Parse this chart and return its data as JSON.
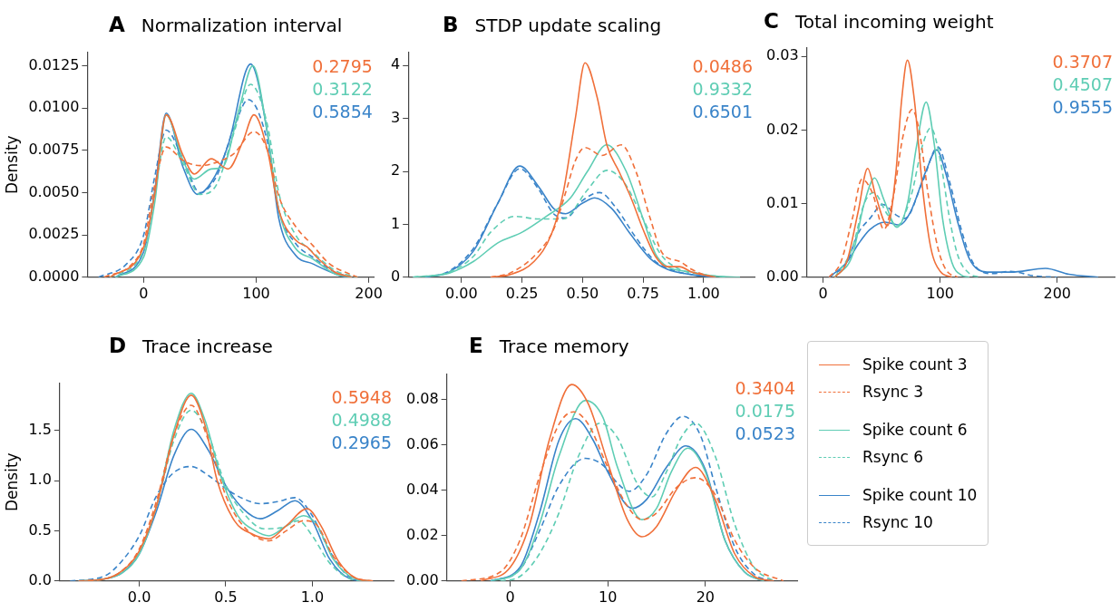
{
  "chart_data": [
    {
      "type": "line",
      "title": "A Normalization interval",
      "ylabel": "Density",
      "xlim": [
        -50,
        205
      ],
      "ylim": [
        0,
        0.0133
      ],
      "xticks": [
        0,
        100,
        200
      ],
      "yticks": [
        {
          "value": 0,
          "label": "0.0000"
        },
        {
          "value": 0.0025,
          "label": "0.0025"
        },
        {
          "value": 0.005,
          "label": "0.0050"
        },
        {
          "value": 0.0075,
          "label": "0.0075"
        },
        {
          "value": 0.01,
          "label": "0.0100"
        },
        {
          "value": 0.0125,
          "label": "0.0125"
        }
      ],
      "grid": false,
      "annotations": [
        "0.2795",
        "0.3122",
        "0.5854"
      ],
      "series": [
        {
          "color": "#f0703a",
          "line_style": "solid",
          "x": [
            -30,
            0,
            10,
            20,
            35,
            45,
            60,
            75,
            88,
            98,
            110,
            120,
            135,
            145,
            155,
            170,
            185
          ],
          "values": [
            0,
            0.0018,
            0.005,
            0.0096,
            0.0072,
            0.0061,
            0.007,
            0.0064,
            0.008,
            0.0096,
            0.0075,
            0.004,
            0.0022,
            0.0018,
            0.0011,
            0.0003,
            0
          ]
        },
        {
          "color": "#f0703a",
          "line_style": "dashed",
          "x": [
            -35,
            -10,
            0,
            10,
            20,
            35,
            50,
            65,
            80,
            98,
            110,
            120,
            135,
            150,
            165,
            190
          ],
          "values": [
            0,
            0.0008,
            0.002,
            0.0055,
            0.0077,
            0.0069,
            0.0066,
            0.0068,
            0.0073,
            0.0086,
            0.0075,
            0.0048,
            0.003,
            0.0019,
            0.0008,
            0
          ]
        },
        {
          "color": "#5fcdb4",
          "line_style": "solid",
          "x": [
            -25,
            0,
            10,
            20,
            35,
            45,
            60,
            70,
            85,
            97,
            110,
            120,
            135,
            150,
            170,
            185
          ],
          "values": [
            0,
            0.0012,
            0.0045,
            0.0096,
            0.0069,
            0.0058,
            0.0064,
            0.0065,
            0.01,
            0.0125,
            0.0085,
            0.004,
            0.0017,
            0.0011,
            0.0002,
            0
          ]
        },
        {
          "color": "#5fcdb4",
          "line_style": "dashed",
          "x": [
            -30,
            0,
            10,
            20,
            35,
            50,
            65,
            80,
            95,
            110,
            120,
            135,
            150,
            170,
            190
          ],
          "values": [
            0,
            0.0016,
            0.005,
            0.0083,
            0.0067,
            0.0049,
            0.0055,
            0.0085,
            0.0114,
            0.009,
            0.005,
            0.0025,
            0.0015,
            0.0004,
            0
          ]
        },
        {
          "color": "#3a84c9",
          "line_style": "solid",
          "x": [
            -25,
            0,
            10,
            20,
            35,
            48,
            60,
            75,
            95,
            110,
            120,
            135,
            150,
            170,
            180
          ],
          "values": [
            0,
            0.0015,
            0.0052,
            0.0097,
            0.0065,
            0.0049,
            0.0056,
            0.0078,
            0.0126,
            0.0085,
            0.0035,
            0.0013,
            0.0008,
            0.0002,
            0
          ]
        },
        {
          "color": "#3a84c9",
          "line_style": "dashed",
          "x": [
            -40,
            -15,
            0,
            10,
            20,
            35,
            50,
            65,
            80,
            93,
            110,
            120,
            135,
            150,
            170,
            185
          ],
          "values": [
            0,
            0.0008,
            0.0025,
            0.006,
            0.0087,
            0.007,
            0.005,
            0.006,
            0.0088,
            0.0105,
            0.008,
            0.004,
            0.002,
            0.0012,
            0.0003,
            0
          ]
        }
      ]
    },
    {
      "type": "line",
      "title": "B STDP update scaling",
      "xlim": [
        -0.22,
        1.21
      ],
      "ylim": [
        0,
        4.25
      ],
      "xticks": [
        {
          "value": 0,
          "label": "0.00"
        },
        {
          "value": 0.25,
          "label": "0.25"
        },
        {
          "value": 0.5,
          "label": "0.50"
        },
        {
          "value": 0.75,
          "label": "0.75"
        },
        {
          "value": 1,
          "label": "1.00"
        }
      ],
      "yticks": [
        0,
        1,
        2,
        3,
        4
      ],
      "grid": false,
      "annotations": [
        "0.0486",
        "0.9332",
        "0.6501"
      ],
      "series": [
        {
          "color": "#f0703a",
          "line_style": "solid",
          "x": [
            0.12,
            0.2,
            0.3,
            0.37,
            0.42,
            0.47,
            0.51,
            0.56,
            0.6,
            0.65,
            0.7,
            0.75,
            0.8,
            0.85,
            0.9,
            0.95,
            1.05
          ],
          "values": [
            0,
            0.05,
            0.3,
            0.8,
            1.6,
            3.0,
            4.05,
            3.4,
            2.5,
            2.0,
            1.5,
            0.9,
            0.4,
            0.2,
            0.2,
            0.1,
            0
          ]
        },
        {
          "color": "#f0703a",
          "line_style": "dashed",
          "x": [
            0.12,
            0.2,
            0.3,
            0.38,
            0.43,
            0.47,
            0.51,
            0.58,
            0.66,
            0.72,
            0.78,
            0.83,
            0.9,
            0.95,
            1.0,
            1.05
          ],
          "values": [
            0,
            0.08,
            0.4,
            0.9,
            1.6,
            2.2,
            2.45,
            2.3,
            2.5,
            2.0,
            1.1,
            0.45,
            0.3,
            0.15,
            0.05,
            0
          ]
        },
        {
          "color": "#5fcdb4",
          "line_style": "solid",
          "x": [
            -0.2,
            -0.05,
            0.05,
            0.15,
            0.25,
            0.35,
            0.45,
            0.52,
            0.6,
            0.68,
            0.75,
            0.8,
            0.85,
            0.95,
            1.05,
            1.15
          ],
          "values": [
            0,
            0.08,
            0.3,
            0.65,
            0.85,
            1.15,
            1.5,
            2.0,
            2.5,
            2.0,
            1.1,
            0.45,
            0.2,
            0.1,
            0.02,
            0
          ]
        },
        {
          "color": "#5fcdb4",
          "line_style": "dashed",
          "x": [
            -0.2,
            -0.05,
            0.05,
            0.12,
            0.22,
            0.32,
            0.42,
            0.52,
            0.6,
            0.67,
            0.75,
            0.82,
            0.9,
            1.0,
            1.1
          ],
          "values": [
            0,
            0.1,
            0.4,
            0.85,
            1.15,
            1.1,
            1.1,
            1.65,
            2.02,
            1.8,
            1.1,
            0.45,
            0.15,
            0.05,
            0
          ]
        },
        {
          "color": "#3a84c9",
          "line_style": "solid",
          "x": [
            -0.15,
            -0.05,
            0.05,
            0.15,
            0.24,
            0.32,
            0.38,
            0.43,
            0.5,
            0.55,
            0.62,
            0.7,
            0.78,
            0.85,
            0.95,
            1.05
          ],
          "values": [
            0,
            0.1,
            0.5,
            1.4,
            2.1,
            1.7,
            1.3,
            1.2,
            1.4,
            1.5,
            1.3,
            0.8,
            0.35,
            0.15,
            0.05,
            0
          ]
        },
        {
          "color": "#3a84c9",
          "line_style": "dashed",
          "x": [
            -0.15,
            -0.05,
            0.05,
            0.15,
            0.24,
            0.32,
            0.38,
            0.43,
            0.5,
            0.57,
            0.64,
            0.72,
            0.8,
            0.88,
            0.95,
            1.05
          ],
          "values": [
            0,
            0.12,
            0.55,
            1.4,
            2.05,
            1.65,
            1.2,
            1.12,
            1.45,
            1.6,
            1.3,
            0.75,
            0.3,
            0.12,
            0.05,
            0
          ]
        }
      ]
    },
    {
      "type": "line",
      "title": "C Total incoming weight",
      "xlim": [
        -14,
        249
      ],
      "ylim": [
        0,
        0.0312
      ],
      "xticks": [
        0,
        100,
        200
      ],
      "yticks": [
        {
          "value": 0,
          "label": "0.00"
        },
        {
          "value": 0.01,
          "label": "0.01"
        },
        {
          "value": 0.02,
          "label": "0.02"
        },
        {
          "value": 0.03,
          "label": "0.03"
        }
      ],
      "grid": false,
      "annotations": [
        "0.3707",
        "0.4507",
        "0.9555"
      ],
      "series": [
        {
          "color": "#f0703a",
          "line_style": "solid",
          "x": [
            10,
            20,
            30,
            38,
            45,
            55,
            62,
            67,
            72,
            78,
            85,
            92,
            100,
            110
          ],
          "values": [
            0,
            0.002,
            0.009,
            0.0148,
            0.011,
            0.007,
            0.014,
            0.024,
            0.0295,
            0.024,
            0.012,
            0.004,
            0.0008,
            0
          ]
        },
        {
          "color": "#f0703a",
          "line_style": "dashed",
          "x": [
            5,
            15,
            25,
            33,
            42,
            52,
            60,
            68,
            76,
            82,
            90,
            98,
            105,
            115
          ],
          "values": [
            0,
            0.002,
            0.008,
            0.0133,
            0.0115,
            0.0065,
            0.011,
            0.019,
            0.0228,
            0.02,
            0.011,
            0.004,
            0.001,
            0
          ]
        },
        {
          "color": "#5fcdb4",
          "line_style": "solid",
          "x": [
            10,
            25,
            35,
            44,
            52,
            63,
            72,
            80,
            88,
            95,
            102,
            110,
            118,
            125
          ],
          "values": [
            0,
            0.003,
            0.01,
            0.0135,
            0.0105,
            0.0068,
            0.01,
            0.018,
            0.0238,
            0.018,
            0.008,
            0.002,
            0.0003,
            0
          ]
        },
        {
          "color": "#5fcdb4",
          "line_style": "dashed",
          "x": [
            10,
            25,
            35,
            43,
            55,
            63,
            75,
            85,
            92,
            100,
            108,
            115,
            125,
            135
          ],
          "values": [
            0,
            0.004,
            0.01,
            0.0115,
            0.0085,
            0.007,
            0.011,
            0.018,
            0.0203,
            0.016,
            0.008,
            0.003,
            0.0005,
            0
          ]
        },
        {
          "color": "#3a84c9",
          "line_style": "solid",
          "x": [
            5,
            20,
            30,
            40,
            53,
            65,
            75,
            88,
            97,
            105,
            115,
            125,
            140,
            160,
            190,
            210,
            235
          ],
          "values": [
            0,
            0.002,
            0.0045,
            0.0065,
            0.0075,
            0.0071,
            0.009,
            0.0145,
            0.0173,
            0.014,
            0.0075,
            0.0025,
            0.0007,
            0.0007,
            0.0012,
            0.0004,
            0
          ]
        },
        {
          "color": "#3a84c9",
          "line_style": "dashed",
          "x": [
            5,
            20,
            30,
            40,
            51,
            62,
            70,
            85,
            98,
            108,
            118,
            128,
            145,
            160,
            180,
            200
          ],
          "values": [
            0,
            0.002,
            0.006,
            0.008,
            0.0099,
            0.0085,
            0.008,
            0.013,
            0.0177,
            0.013,
            0.0065,
            0.002,
            0.0005,
            0.0008,
            0.0002,
            0
          ]
        }
      ]
    },
    {
      "type": "line",
      "title": "D Trace increase",
      "ylabel": "Density",
      "xlim": [
        -0.46,
        1.47
      ],
      "ylim": [
        0,
        1.97
      ],
      "xticks": [
        {
          "value": 0,
          "label": "0.0"
        },
        {
          "value": 0.5,
          "label": "0.5"
        },
        {
          "value": 1,
          "label": "1.0"
        }
      ],
      "yticks": [
        {
          "value": 0,
          "label": "0.0"
        },
        {
          "value": 0.5,
          "label": "0.5"
        },
        {
          "value": 1,
          "label": "1.0"
        },
        {
          "value": 1.5,
          "label": "1.5"
        }
      ],
      "grid": false,
      "annotations": [
        "0.5948",
        "0.4988",
        "0.2965"
      ],
      "series": [
        {
          "color": "#f0703a",
          "line_style": "solid",
          "x": [
            -0.35,
            -0.2,
            -0.1,
            0,
            0.1,
            0.2,
            0.3,
            0.38,
            0.45,
            0.55,
            0.65,
            0.75,
            0.85,
            0.97,
            1.05,
            1.15,
            1.25,
            1.35
          ],
          "values": [
            0,
            0.02,
            0.1,
            0.3,
            0.75,
            1.45,
            1.85,
            1.55,
            1.0,
            0.6,
            0.47,
            0.42,
            0.55,
            0.72,
            0.55,
            0.2,
            0.03,
            0
          ]
        },
        {
          "color": "#f0703a",
          "line_style": "dashed",
          "x": [
            -0.35,
            -0.2,
            -0.1,
            0,
            0.1,
            0.2,
            0.3,
            0.4,
            0.5,
            0.6,
            0.75,
            0.85,
            0.95,
            1.03,
            1.12,
            1.25,
            1.35
          ],
          "values": [
            0,
            0.02,
            0.1,
            0.32,
            0.8,
            1.45,
            1.75,
            1.4,
            0.85,
            0.55,
            0.4,
            0.5,
            0.6,
            0.55,
            0.25,
            0.03,
            0
          ]
        },
        {
          "color": "#5fcdb4",
          "line_style": "solid",
          "x": [
            -0.35,
            -0.2,
            -0.1,
            0,
            0.1,
            0.2,
            0.3,
            0.38,
            0.47,
            0.57,
            0.67,
            0.75,
            0.85,
            0.95,
            1.03,
            1.12,
            1.25,
            1.35
          ],
          "values": [
            0,
            0.02,
            0.08,
            0.27,
            0.75,
            1.5,
            1.87,
            1.6,
            1.05,
            0.65,
            0.5,
            0.45,
            0.55,
            0.65,
            0.55,
            0.22,
            0.02,
            0
          ]
        },
        {
          "color": "#5fcdb4",
          "line_style": "dashed",
          "x": [
            -0.35,
            -0.2,
            -0.1,
            0,
            0.1,
            0.2,
            0.3,
            0.4,
            0.5,
            0.6,
            0.72,
            0.82,
            0.92,
            1.0,
            1.1,
            1.22,
            1.3
          ],
          "values": [
            0,
            0.02,
            0.1,
            0.3,
            0.75,
            1.4,
            1.7,
            1.45,
            0.95,
            0.68,
            0.52,
            0.53,
            0.6,
            0.45,
            0.18,
            0.02,
            0
          ]
        },
        {
          "color": "#3a84c9",
          "line_style": "solid",
          "x": [
            -0.35,
            -0.2,
            -0.1,
            0,
            0.1,
            0.2,
            0.3,
            0.4,
            0.5,
            0.6,
            0.7,
            0.8,
            0.9,
            1.0,
            1.1,
            1.22,
            1.3
          ],
          "values": [
            0,
            0.02,
            0.08,
            0.27,
            0.7,
            1.25,
            1.51,
            1.3,
            0.95,
            0.72,
            0.62,
            0.7,
            0.8,
            0.6,
            0.22,
            0.02,
            0
          ]
        },
        {
          "color": "#3a84c9",
          "line_style": "dashed",
          "x": [
            -0.4,
            -0.2,
            -0.1,
            0,
            0.1,
            0.2,
            0.3,
            0.4,
            0.5,
            0.6,
            0.7,
            0.8,
            0.9,
            1.0,
            1.1,
            1.2,
            1.3
          ],
          "values": [
            0,
            0.05,
            0.2,
            0.45,
            0.85,
            1.08,
            1.14,
            1.05,
            0.92,
            0.82,
            0.77,
            0.79,
            0.83,
            0.65,
            0.3,
            0.06,
            0
          ]
        }
      ]
    },
    {
      "type": "line",
      "title": "E Trace memory",
      "xlim": [
        -6.5,
        29.4
      ],
      "ylim": [
        0,
        0.0911
      ],
      "xticks": [
        0,
        10,
        20
      ],
      "yticks": [
        {
          "value": 0,
          "label": "0.00"
        },
        {
          "value": 0.02,
          "label": "0.02"
        },
        {
          "value": 0.04,
          "label": "0.04"
        },
        {
          "value": 0.06,
          "label": "0.06"
        },
        {
          "value": 0.08,
          "label": "0.08"
        }
      ],
      "grid": false,
      "legend": "right",
      "annotations": [
        "0.3404",
        "0.0175",
        "0.0523"
      ],
      "series": [
        {
          "name": "Spike count 3",
          "color": "#f0703a",
          "line_style": "solid",
          "x": [
            -3,
            0,
            2,
            4,
            6.3,
            8,
            10,
            12,
            13.5,
            15,
            17,
            19,
            21,
            23,
            25,
            27
          ],
          "values": [
            0,
            0.006,
            0.025,
            0.062,
            0.0865,
            0.078,
            0.052,
            0.027,
            0.0195,
            0.024,
            0.04,
            0.05,
            0.036,
            0.012,
            0.002,
            0
          ]
        },
        {
          "name": "Rsync 3",
          "color": "#f0703a",
          "line_style": "dashed",
          "x": [
            -5,
            -1,
            1,
            3,
            5,
            6.5,
            8,
            10,
            12,
            13.5,
            15,
            17,
            19,
            21,
            23,
            25,
            28
          ],
          "values": [
            0,
            0.004,
            0.018,
            0.046,
            0.069,
            0.0745,
            0.069,
            0.05,
            0.033,
            0.027,
            0.03,
            0.041,
            0.0455,
            0.038,
            0.018,
            0.006,
            0
          ]
        },
        {
          "name": "Spike count 6",
          "color": "#5fcdb4",
          "line_style": "solid",
          "x": [
            -2,
            1,
            3,
            5,
            7.7,
            9.5,
            11,
            13.5,
            15,
            16.5,
            18.2,
            20,
            22,
            24,
            26
          ],
          "values": [
            0,
            0.005,
            0.025,
            0.055,
            0.0795,
            0.072,
            0.05,
            0.027,
            0.032,
            0.048,
            0.0585,
            0.048,
            0.018,
            0.004,
            0
          ]
        },
        {
          "name": "Rsync 6",
          "color": "#5fcdb4",
          "line_style": "dashed",
          "x": [
            -1,
            1,
            3,
            5,
            7,
            9.2,
            11,
            13,
            14.5,
            16,
            17.5,
            19,
            21,
            23,
            25,
            27
          ],
          "values": [
            0,
            0.002,
            0.012,
            0.03,
            0.055,
            0.0695,
            0.063,
            0.043,
            0.037,
            0.048,
            0.063,
            0.0695,
            0.055,
            0.025,
            0.006,
            0
          ]
        },
        {
          "name": "Spike count 10",
          "color": "#3a84c9",
          "line_style": "solid",
          "x": [
            -2,
            1,
            3,
            5,
            6.7,
            8.5,
            10,
            12.5,
            14,
            16,
            18,
            20,
            22,
            24,
            26
          ],
          "values": [
            0,
            0.006,
            0.03,
            0.062,
            0.0715,
            0.062,
            0.048,
            0.032,
            0.036,
            0.05,
            0.0595,
            0.049,
            0.018,
            0.004,
            0
          ]
        },
        {
          "name": "Rsync 10",
          "color": "#3a84c9",
          "line_style": "dashed",
          "x": [
            -2,
            1,
            3,
            5,
            7.7,
            9.5,
            11,
            12.2,
            14,
            16,
            17.7,
            19.5,
            21,
            23,
            25,
            27
          ],
          "values": [
            0,
            0.005,
            0.022,
            0.042,
            0.054,
            0.051,
            0.043,
            0.0395,
            0.047,
            0.065,
            0.0725,
            0.064,
            0.042,
            0.015,
            0.003,
            0
          ]
        }
      ]
    }
  ]
}
